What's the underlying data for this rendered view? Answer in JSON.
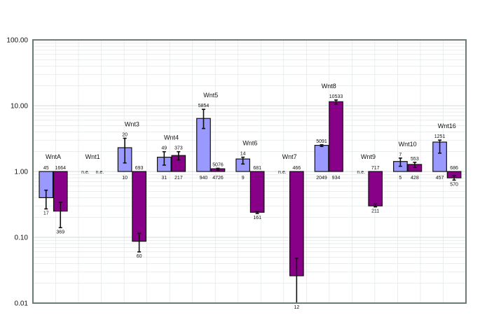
{
  "chart_data": {
    "type": "bar",
    "scale": "log",
    "baseline": 1,
    "ylim": [
      0.01,
      100
    ],
    "yticks": [
      0.01,
      0.1,
      1,
      10,
      100
    ],
    "ytick_labels": [
      "0.01",
      "0.10",
      "1.00",
      "10.00",
      "100.00"
    ],
    "grid": true,
    "legend": "none",
    "colors": {
      "series1": "#9999ff",
      "series2": "#880088",
      "frame": "#6b7b77"
    },
    "groups": [
      {
        "name": "WntA",
        "bars": [
          {
            "value": 0.4,
            "err": [
              0.27,
              0.52
            ],
            "top_label": "45",
            "bottom_label": "17"
          },
          {
            "value": 0.25,
            "err": [
              0.14,
              0.34
            ],
            "top_label": "1664",
            "bottom_label": "369"
          }
        ]
      },
      {
        "name": "Wnt1",
        "bars": [
          {
            "value": null,
            "na_label": "n.e."
          },
          {
            "value": null,
            "na_label": "n.e."
          }
        ]
      },
      {
        "name": "Wnt3",
        "bars": [
          {
            "value": 2.3,
            "err": [
              1.35,
              3.2
            ],
            "top_label": "20",
            "bottom_label": "10"
          },
          {
            "value": 0.087,
            "err": [
              0.06,
              0.115
            ],
            "top_label": "693",
            "bottom_label": "60"
          }
        ]
      },
      {
        "name": "Wnt4",
        "bars": [
          {
            "value": 1.65,
            "err": [
              1.25,
              2.0
            ],
            "top_label": "49",
            "bottom_label": "31"
          },
          {
            "value": 1.75,
            "err": [
              1.5,
              2.0
            ],
            "top_label": "373",
            "bottom_label": "217"
          }
        ]
      },
      {
        "name": "Wnt5",
        "bars": [
          {
            "value": 6.4,
            "err": [
              4.5,
              8.8
            ],
            "top_label": "5854",
            "bottom_label": "940"
          },
          {
            "value": 1.1,
            "err": [
              1.05,
              1.12
            ],
            "top_label": "5076",
            "bottom_label": "4726"
          }
        ]
      },
      {
        "name": "Wnt6",
        "bars": [
          {
            "value": 1.55,
            "err": [
              1.3,
              1.65
            ],
            "top_label": "14",
            "bottom_label": "9"
          },
          {
            "value": 0.24,
            "err": [
              0.23,
              0.245
            ],
            "top_label": "681",
            "bottom_label": "161"
          }
        ]
      },
      {
        "name": "Wnt7",
        "bars": [
          {
            "value": null,
            "na_label": "n.e."
          },
          {
            "value": 0.026,
            "err": [
              0.01,
              0.048
            ],
            "top_label": "466",
            "bottom_label": "12"
          }
        ]
      },
      {
        "name": "Wnt8",
        "bars": [
          {
            "value": 2.5,
            "err": [
              2.4,
              2.55
            ],
            "top_label": "5091",
            "bottom_label": "2049"
          },
          {
            "value": 11.5,
            "err": [
              10.6,
              12.2
            ],
            "top_label": "10533",
            "bottom_label": "934"
          }
        ]
      },
      {
        "name": "Wnt9",
        "bars": [
          {
            "value": null,
            "na_label": "n.e."
          },
          {
            "value": 0.3,
            "err": [
              0.29,
              0.32
            ],
            "top_label": "717",
            "bottom_label": "211"
          }
        ]
      },
      {
        "name": "Wnt10",
        "bars": [
          {
            "value": 1.42,
            "err": [
              1.2,
              1.6
            ],
            "top_label": "7",
            "bottom_label": "5"
          },
          {
            "value": 1.28,
            "err": [
              1.15,
              1.38
            ],
            "top_label": "553",
            "bottom_label": "428"
          }
        ]
      },
      {
        "name": "Wnt16",
        "bars": [
          {
            "value": 2.8,
            "err": [
              1.9,
              3.0
            ],
            "top_label": "1251",
            "bottom_label": "457"
          },
          {
            "value": 0.8,
            "err": [
              0.74,
              0.86
            ],
            "top_label": "686",
            "bottom_label": "570"
          }
        ]
      }
    ]
  }
}
